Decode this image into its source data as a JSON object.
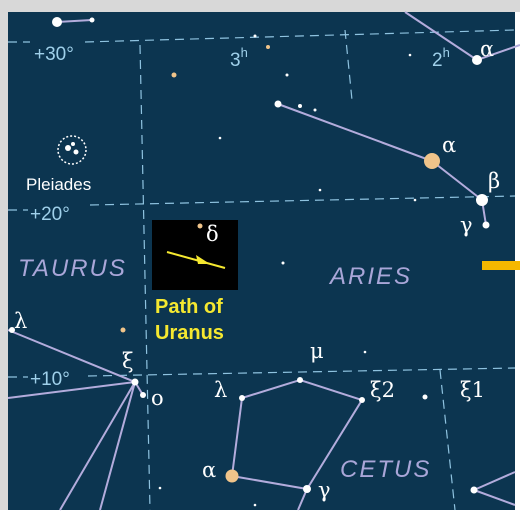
{
  "map": {
    "declination_labels": [
      "+30°",
      "+20°",
      "+10°"
    ],
    "ra_labels": [
      {
        "hour": "3",
        "unit": "h"
      },
      {
        "hour": "2",
        "unit": "h"
      }
    ],
    "constellations": [
      "TAURUS",
      "ARIES",
      "CETUS"
    ],
    "cluster": "Pleiades",
    "inset": {
      "star_label": "δ",
      "caption": [
        "Path of",
        "Uranus"
      ]
    },
    "star_labels": [
      "α",
      "α",
      "β",
      "γ",
      "λ",
      "ξ",
      "o",
      "μ",
      "λ",
      "ξ2",
      "ξ1",
      "α",
      "γ"
    ]
  }
}
